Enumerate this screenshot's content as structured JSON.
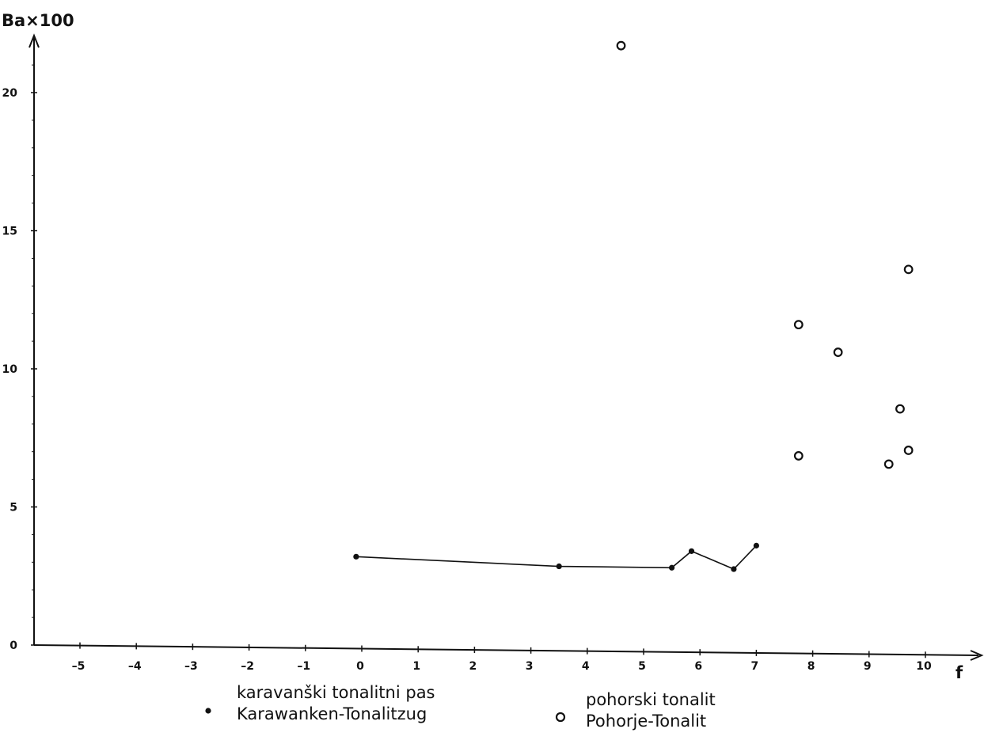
{
  "chart_data": {
    "type": "scatter",
    "title": "",
    "xlabel": "f",
    "ylabel": "Ba×100",
    "xlim": [
      -5.8,
      10.4
    ],
    "ylim": [
      0,
      21.9
    ],
    "x_ticks": [
      -5,
      -4,
      -3,
      -2,
      -1,
      0,
      1,
      2,
      3,
      4,
      5,
      6,
      7,
      8,
      9,
      10
    ],
    "y_ticks": [
      0,
      5,
      10,
      15,
      20
    ],
    "grid": false,
    "legend_position": "bottom",
    "series": [
      {
        "marker": "filled-dot",
        "connected": true,
        "legend_lines": [
          "karavanški tonalitni pas",
          "Karawanken-Tonalitzug"
        ],
        "points": [
          {
            "x": -0.1,
            "y": 3.2
          },
          {
            "x": 3.5,
            "y": 2.85
          },
          {
            "x": 5.5,
            "y": 2.8
          },
          {
            "x": 5.85,
            "y": 3.4
          },
          {
            "x": 6.6,
            "y": 2.75
          },
          {
            "x": 7.0,
            "y": 3.6
          }
        ]
      },
      {
        "marker": "open-circle",
        "connected": false,
        "legend_lines": [
          "pohorski tonalit",
          "Pohorje-Tonalit"
        ],
        "points": [
          {
            "x": 4.6,
            "y": 21.7
          },
          {
            "x": 9.7,
            "y": 13.6
          },
          {
            "x": 7.75,
            "y": 11.6
          },
          {
            "x": 8.45,
            "y": 10.6
          },
          {
            "x": 9.55,
            "y": 8.55
          },
          {
            "x": 9.7,
            "y": 7.05
          },
          {
            "x": 7.75,
            "y": 6.85
          },
          {
            "x": 9.35,
            "y": 6.55
          }
        ]
      }
    ]
  },
  "colors": {
    "ink": "#111111",
    "background": "#ffffff"
  }
}
